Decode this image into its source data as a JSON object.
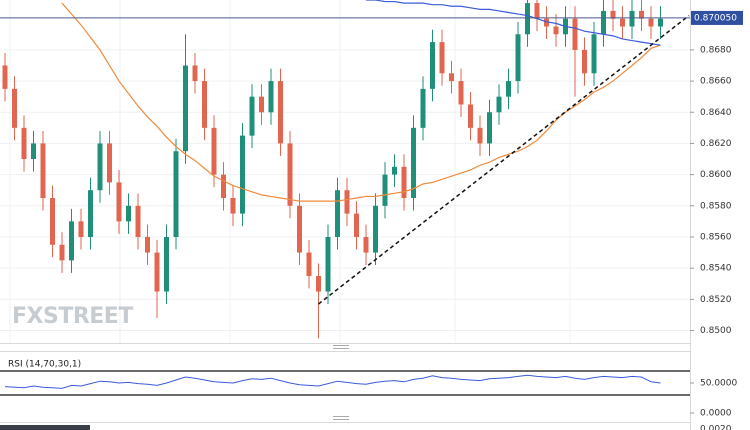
{
  "chart_data": {
    "type": "candlestick",
    "ylim": [
      0.8492,
      0.8712
    ],
    "yticks": [
      {
        "value": 0.85,
        "label": "0.8500"
      },
      {
        "value": 0.852,
        "label": "0.8520"
      },
      {
        "value": 0.854,
        "label": "0.8540"
      },
      {
        "value": 0.856,
        "label": "0.8560"
      },
      {
        "value": 0.858,
        "label": "0.8580"
      },
      {
        "value": 0.86,
        "label": "0.8600"
      },
      {
        "value": 0.862,
        "label": "0.8620"
      },
      {
        "value": 0.864,
        "label": "0.8640"
      },
      {
        "value": 0.866,
        "label": "0.8660"
      },
      {
        "value": 0.868,
        "label": "0.8680"
      }
    ],
    "up_color": "#1f8f7a",
    "down_color": "#e0664f",
    "candles": {
      "open": [
        0.867,
        0.8655,
        0.863,
        0.861,
        0.862,
        0.8585,
        0.8555,
        0.8545,
        0.857,
        0.856,
        0.859,
        0.862,
        0.8595,
        0.857,
        0.858,
        0.856,
        0.855,
        0.8525,
        0.856,
        0.8615,
        0.867,
        0.866,
        0.863,
        0.86,
        0.8585,
        0.8575,
        0.8625,
        0.865,
        0.864,
        0.866,
        0.862,
        0.858,
        0.855,
        0.8535,
        0.8525,
        0.856,
        0.859,
        0.8575,
        0.856,
        0.855,
        0.858,
        0.86,
        0.8605,
        0.8585,
        0.863,
        0.8655,
        0.8685,
        0.8665,
        0.866,
        0.8645,
        0.863,
        0.862,
        0.864,
        0.865,
        0.866,
        0.869,
        0.871,
        0.87,
        0.8695,
        0.869,
        0.87,
        0.868,
        0.8665,
        0.869,
        0.8705,
        0.87,
        0.8695,
        0.8705,
        0.87,
        0.8695
      ],
      "high": [
        0.8678,
        0.8663,
        0.8638,
        0.8628,
        0.8628,
        0.8593,
        0.8563,
        0.8578,
        0.8578,
        0.8598,
        0.8628,
        0.8628,
        0.8603,
        0.8588,
        0.8588,
        0.8568,
        0.8558,
        0.8568,
        0.8623,
        0.869,
        0.8678,
        0.8668,
        0.8638,
        0.8608,
        0.8593,
        0.8633,
        0.8658,
        0.8658,
        0.8668,
        0.8668,
        0.8628,
        0.8588,
        0.8558,
        0.8543,
        0.8568,
        0.8598,
        0.8598,
        0.8583,
        0.8568,
        0.8588,
        0.8608,
        0.8613,
        0.8613,
        0.8638,
        0.8663,
        0.8693,
        0.8693,
        0.8673,
        0.8668,
        0.8653,
        0.8638,
        0.8648,
        0.8658,
        0.8668,
        0.8698,
        0.8718,
        0.8718,
        0.8708,
        0.8703,
        0.8708,
        0.8708,
        0.8688,
        0.8698,
        0.8713,
        0.8713,
        0.8708,
        0.8713,
        0.8713,
        0.8708,
        0.8708
      ],
      "low": [
        0.8647,
        0.8622,
        0.8602,
        0.8602,
        0.8577,
        0.8547,
        0.8537,
        0.8537,
        0.8552,
        0.8552,
        0.8582,
        0.8587,
        0.8562,
        0.8562,
        0.8552,
        0.8542,
        0.8508,
        0.8517,
        0.8552,
        0.8607,
        0.8652,
        0.8622,
        0.8592,
        0.8577,
        0.8567,
        0.8567,
        0.8617,
        0.8632,
        0.8632,
        0.8612,
        0.8572,
        0.8542,
        0.8527,
        0.8495,
        0.8517,
        0.8552,
        0.8567,
        0.8552,
        0.8542,
        0.8542,
        0.8572,
        0.8592,
        0.8577,
        0.8577,
        0.8622,
        0.8647,
        0.8657,
        0.8652,
        0.8637,
        0.8622,
        0.8612,
        0.8612,
        0.8632,
        0.8642,
        0.8652,
        0.8682,
        0.8692,
        0.8687,
        0.8682,
        0.8682,
        0.865,
        0.8657,
        0.8657,
        0.8682,
        0.8692,
        0.8687,
        0.8687,
        0.8692,
        0.8687,
        0.8687
      ],
      "close": [
        0.8655,
        0.863,
        0.861,
        0.862,
        0.8585,
        0.8555,
        0.8545,
        0.857,
        0.856,
        0.859,
        0.862,
        0.8595,
        0.857,
        0.858,
        0.856,
        0.855,
        0.8525,
        0.856,
        0.8615,
        0.867,
        0.866,
        0.863,
        0.86,
        0.8585,
        0.8575,
        0.8625,
        0.865,
        0.864,
        0.866,
        0.862,
        0.858,
        0.855,
        0.8535,
        0.8525,
        0.856,
        0.859,
        0.8575,
        0.856,
        0.855,
        0.858,
        0.86,
        0.8605,
        0.8585,
        0.863,
        0.8655,
        0.8685,
        0.8665,
        0.866,
        0.8645,
        0.863,
        0.862,
        0.864,
        0.865,
        0.866,
        0.869,
        0.871,
        0.87,
        0.8695,
        0.869,
        0.87,
        0.868,
        0.8665,
        0.869,
        0.8705,
        0.87,
        0.8695,
        0.8705,
        0.87,
        0.8695,
        0.87
      ]
    },
    "overlays": [
      {
        "color": "#f08a3c",
        "values": [
          null,
          null,
          null,
          null,
          null,
          null,
          0.871,
          0.8703,
          0.8696,
          0.8688,
          0.868,
          0.867,
          0.866,
          0.8652,
          0.8644,
          0.8637,
          0.8631,
          0.8624,
          0.8618,
          0.8613,
          0.8609,
          0.8604,
          0.8599,
          0.8596,
          0.8593,
          0.8591,
          0.8589,
          0.8587,
          0.8586,
          0.8585,
          0.8584,
          0.8583,
          0.8583,
          0.8583,
          0.8583,
          0.8583,
          0.8584,
          0.8585,
          0.8586,
          0.8586,
          0.8587,
          0.8588,
          0.8589,
          0.8591,
          0.8594,
          0.8595,
          0.8597,
          0.8599,
          0.8601,
          0.8603,
          0.8606,
          0.8608,
          0.8611,
          0.8613,
          0.8615,
          0.8618,
          0.8622,
          0.8628,
          0.8635,
          0.864,
          0.8644,
          0.8648,
          0.8653,
          0.8656,
          0.866,
          0.8665,
          0.867,
          0.8675,
          0.8681,
          0.8683
        ]
      },
      {
        "color": "#3b5bdb",
        "values": [
          null,
          null,
          null,
          null,
          null,
          null,
          null,
          null,
          null,
          null,
          null,
          null,
          null,
          null,
          null,
          null,
          null,
          null,
          null,
          null,
          null,
          null,
          null,
          null,
          null,
          null,
          null,
          null,
          null,
          null,
          null,
          null,
          null,
          null,
          null,
          null,
          null,
          null,
          0.8712,
          0.8712,
          0.8711,
          0.8711,
          0.871,
          0.871,
          0.871,
          0.8709,
          0.8709,
          0.8708,
          0.8708,
          0.8707,
          0.8706,
          0.8706,
          0.8705,
          0.8704,
          0.8703,
          0.8702,
          0.87,
          0.8698,
          0.8697,
          0.8695,
          0.8694,
          0.8692,
          0.8691,
          0.869,
          0.8689,
          0.8687,
          0.8686,
          0.8685,
          0.8684,
          0.8683
        ]
      }
    ],
    "trendline": {
      "from": [
        33,
        0.8517
      ],
      "to": [
        72,
        0.8702
      ]
    },
    "last_price": {
      "value": 0.87005,
      "label": "0.870050"
    },
    "watermark": "FXSTREET",
    "rsi": {
      "label": "RSI (14,70,30,1)",
      "ylim": [
        0,
        100
      ],
      "yticks": [
        {
          "value": 50,
          "label": "50.0000"
        },
        {
          "value": 0,
          "label": "0.0000"
        }
      ],
      "levels": [
        70,
        30
      ],
      "color": "#3b5bdb",
      "values": [
        44,
        43,
        42,
        45,
        43,
        42,
        41,
        46,
        45,
        49,
        53,
        52,
        50,
        51,
        49,
        48,
        46,
        50,
        55,
        60,
        58,
        55,
        52,
        51,
        50,
        54,
        57,
        56,
        58,
        54,
        50,
        47,
        46,
        45,
        49,
        53,
        51,
        49,
        48,
        51,
        53,
        54,
        52,
        56,
        58,
        62,
        59,
        58,
        56,
        55,
        54,
        57,
        58,
        59,
        61,
        63,
        61,
        60,
        59,
        61,
        58,
        56,
        59,
        61,
        60,
        59,
        61,
        60,
        52,
        50
      ]
    },
    "panel3_tick": {
      "value": 0.002,
      "label": "0.0020"
    }
  }
}
